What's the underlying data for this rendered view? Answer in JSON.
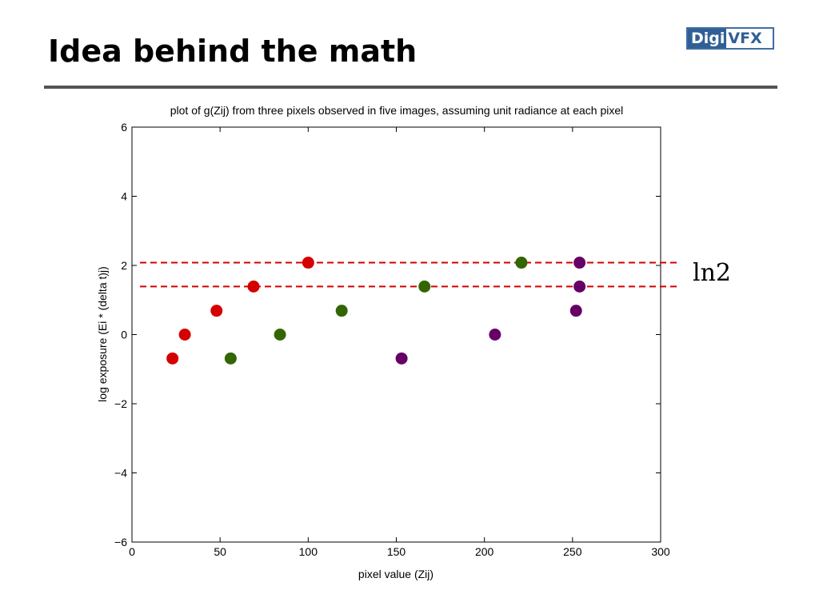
{
  "slide": {
    "title": "Idea behind the math",
    "logo_part_a": "Digi",
    "logo_part_b": "VFX",
    "annotation": "ln2"
  },
  "colors": {
    "red": "#d40000",
    "green": "#336600",
    "purple": "#660066",
    "reference_line": "#d40000",
    "title_rule": "#555555"
  },
  "chart_data": {
    "type": "scatter",
    "title": "plot of g(Zij) from three pixels observed in five images, assuming unit radiance at each pixel",
    "xlabel": "pixel value (Zij)",
    "ylabel": "log exposure (Ei * (delta t)j)",
    "xlim": [
      0,
      300
    ],
    "ylim": [
      -6,
      6
    ],
    "xticks": [
      0,
      50,
      100,
      150,
      200,
      250,
      300
    ],
    "yticks": [
      -6,
      -4,
      -2,
      0,
      2,
      4,
      6
    ],
    "grid": false,
    "series": [
      {
        "color": "#d40000",
        "x": [
          23,
          30,
          48,
          69,
          100
        ],
        "y": [
          -0.69,
          0,
          0.69,
          1.39,
          2.08
        ]
      },
      {
        "color": "#336600",
        "x": [
          56,
          84,
          119,
          166,
          221
        ],
        "y": [
          -0.69,
          0,
          0.69,
          1.39,
          2.08
        ]
      },
      {
        "color": "#660066",
        "x": [
          153,
          206,
          252,
          254,
          254
        ],
        "y": [
          -0.69,
          0,
          0.69,
          1.39,
          2.08
        ]
      }
    ],
    "reference_lines": [
      {
        "y": 2.08,
        "style": "dashed",
        "color": "#d40000"
      },
      {
        "y": 1.39,
        "style": "dashed",
        "color": "#d40000"
      }
    ]
  }
}
